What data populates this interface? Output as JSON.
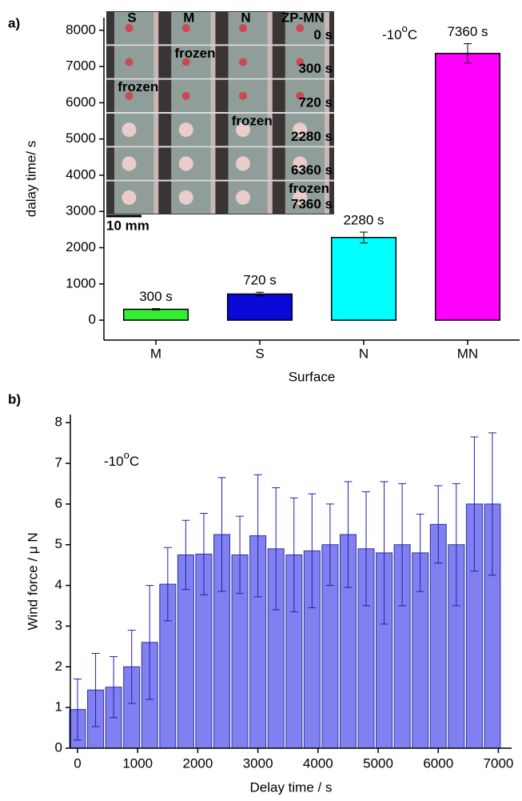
{
  "chart_data": [
    {
      "type": "bar",
      "panel_label": "a)",
      "xlabel": "Surface",
      "ylabel": "dalay time/ s",
      "annotation": {
        "text": "-10",
        "sup": "o",
        "unit": "C"
      },
      "categories": [
        "M",
        "S",
        "N",
        "MN"
      ],
      "values": [
        300,
        720,
        2280,
        7360
      ],
      "value_labels": [
        "300 s",
        "720 s",
        "2280 s",
        "7360 s"
      ],
      "errors": [
        20,
        50,
        150,
        270
      ],
      "colors": [
        "#33ee33",
        "#0a0ad8",
        "#00ffff",
        "#ff00ff"
      ],
      "ylim": [
        -550,
        8350
      ],
      "yticks": [
        0,
        1000,
        2000,
        3000,
        4000,
        5000,
        6000,
        7000,
        8000
      ],
      "inset": {
        "columns": [
          "S",
          "M",
          "N",
          "ZP-MN"
        ],
        "times": [
          "0 s",
          "300 s",
          "720 s",
          "2280 s",
          "6360 s",
          "7360 s"
        ],
        "frozen": [
          "frozen",
          "frozen",
          "frozen",
          "frozen"
        ],
        "scale": "10 mm"
      }
    },
    {
      "type": "bar",
      "panel_label": "b)",
      "xlabel": "Delay time / s",
      "ylabel": "Wind force  / μ N",
      "annotation": {
        "text": "-10",
        "sup": "o",
        "unit": "C"
      },
      "x": [
        0,
        300,
        600,
        900,
        1200,
        1500,
        1800,
        2100,
        2400,
        2700,
        3000,
        3300,
        3600,
        3900,
        4200,
        4500,
        4800,
        5100,
        5400,
        5700,
        6000,
        6300,
        6600,
        6900
      ],
      "values": [
        0.95,
        1.43,
        1.5,
        2.0,
        2.6,
        4.03,
        4.75,
        4.77,
        5.25,
        4.75,
        5.22,
        4.9,
        4.75,
        4.85,
        5.0,
        5.25,
        4.9,
        4.8,
        5.0,
        4.8,
        5.5,
        5.0,
        6.0,
        6.0
      ],
      "errors": [
        0.75,
        0.9,
        0.75,
        0.9,
        1.4,
        0.9,
        0.85,
        1.0,
        1.4,
        0.95,
        1.5,
        1.5,
        1.4,
        1.4,
        1.0,
        1.3,
        1.4,
        1.75,
        1.5,
        0.95,
        0.95,
        1.5,
        1.65,
        1.75
      ],
      "color": "#8080f0",
      "xlim": [
        -120,
        7220
      ],
      "xticks": [
        0,
        1000,
        2000,
        3000,
        4000,
        5000,
        6000,
        7000
      ],
      "ylim": [
        0,
        8.2
      ],
      "yticks": [
        0,
        1,
        2,
        3,
        4,
        5,
        6,
        7,
        8
      ]
    }
  ]
}
